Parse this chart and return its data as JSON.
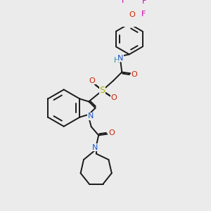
{
  "bg_color": "#ebebeb",
  "bond_color": "#1a1a1a",
  "atom_colors": {
    "N": "#1a55cc",
    "O": "#cc2200",
    "S": "#aaaa00",
    "F": "#cc00aa",
    "H": "#2a9090"
  },
  "lw": 1.4
}
